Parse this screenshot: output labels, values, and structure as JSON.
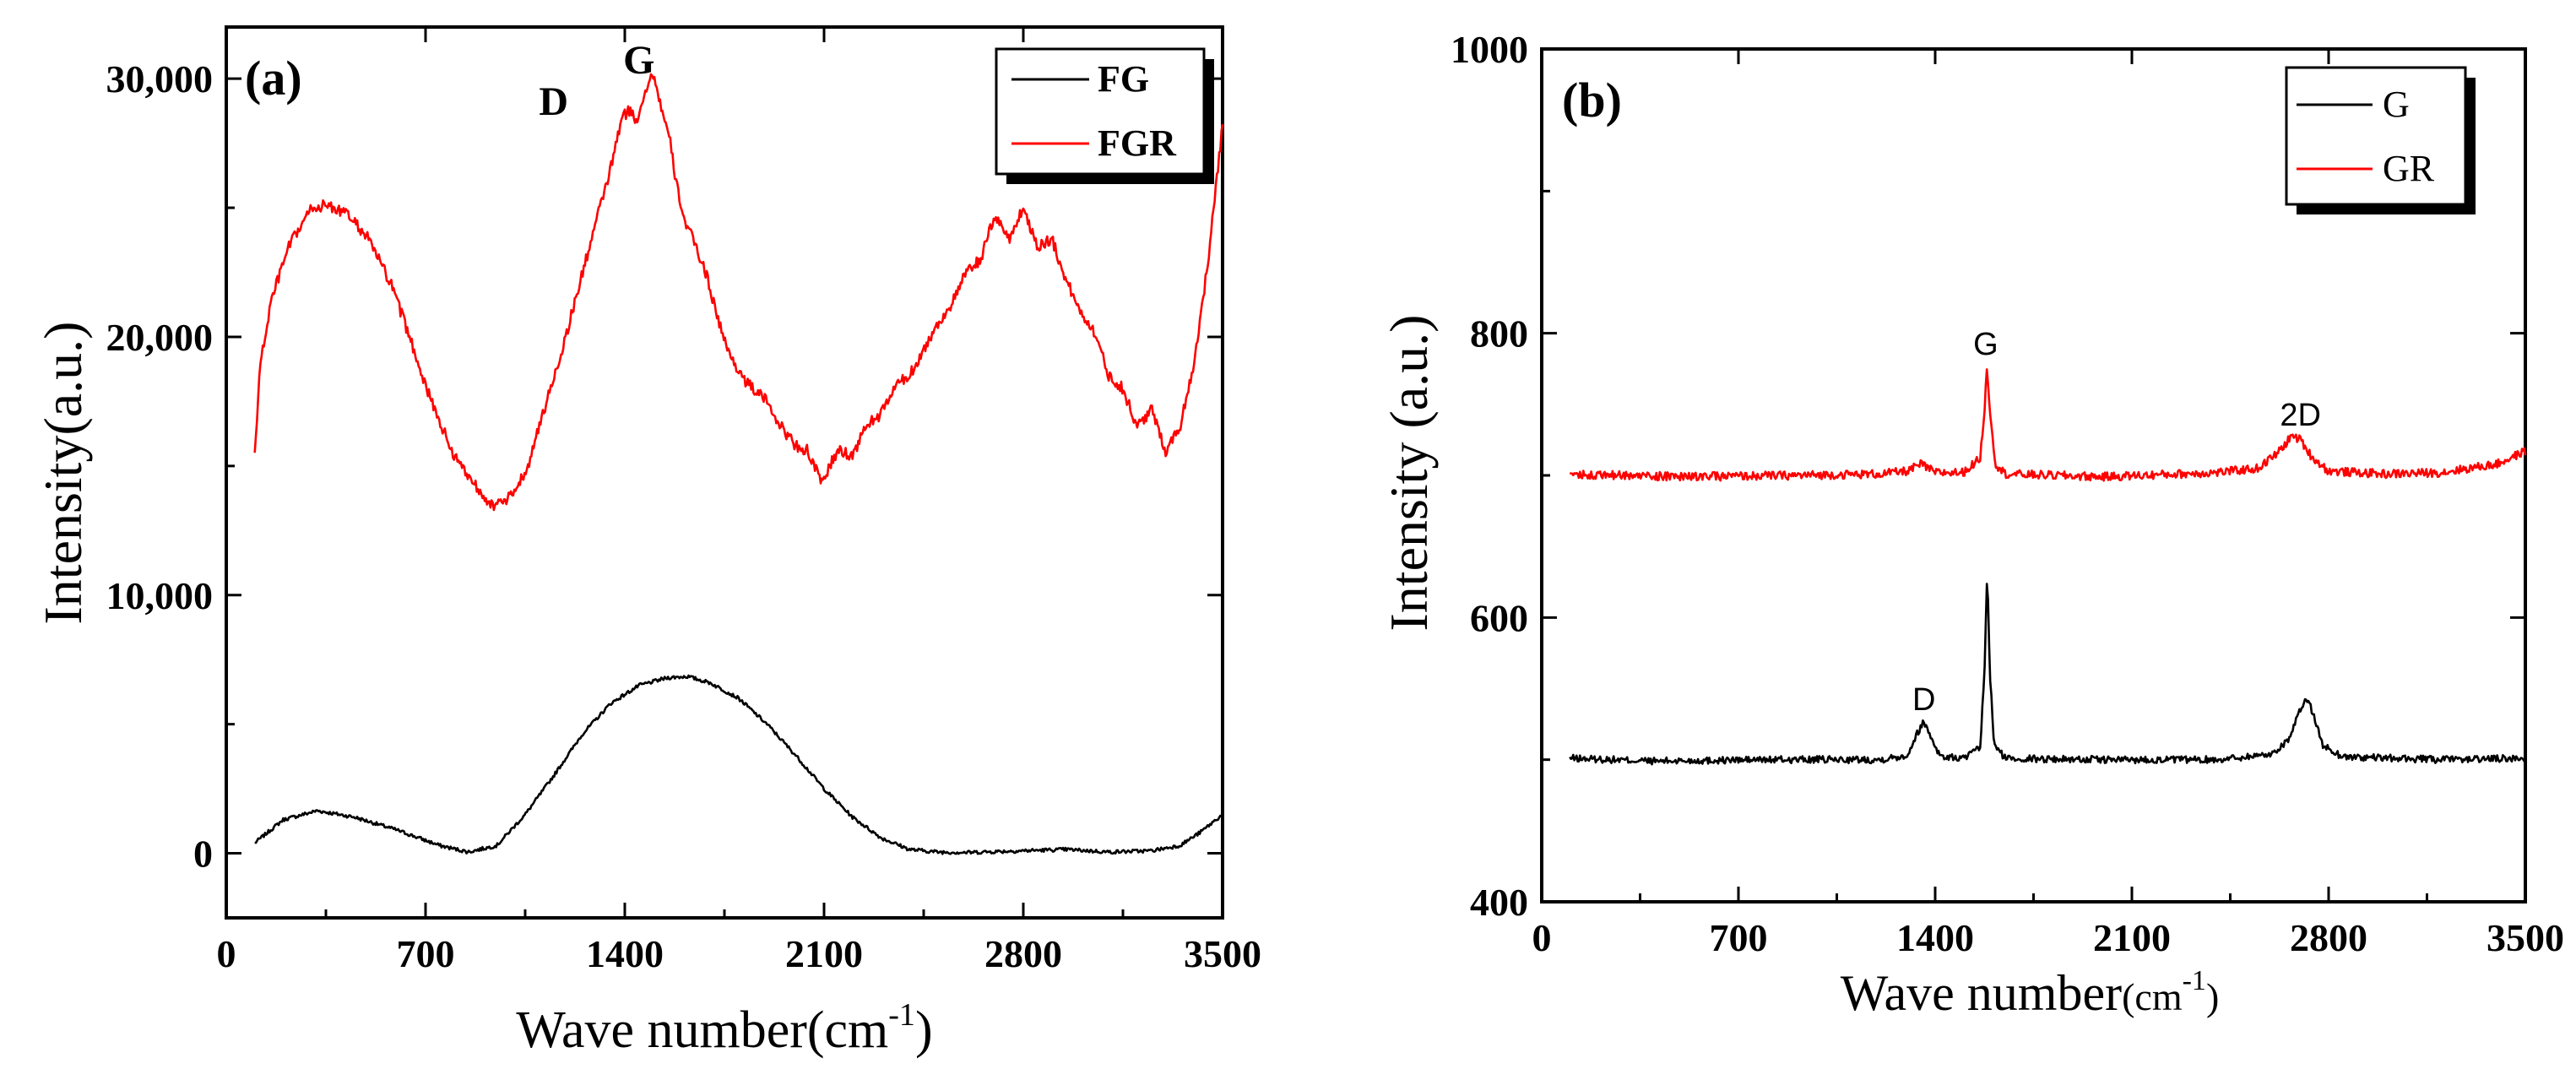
{
  "chart_data": [
    {
      "type": "line",
      "panel_label": "(a)",
      "xlabel_main": "Wave number(cm",
      "xlabel_sup": "-1",
      "xlabel_close": ")",
      "ylabel": "Intensity(a.u.)",
      "xlim": [
        0,
        3500
      ],
      "ylim": [
        -2500,
        32000
      ],
      "xticks": [
        0,
        700,
        1400,
        2100,
        2800,
        3500
      ],
      "xtick_labels": [
        "0",
        "700",
        "1400",
        "2100",
        "2800",
        "3500"
      ],
      "yticks": [
        0,
        10000,
        20000,
        30000
      ],
      "ytick_labels": [
        "0",
        "10,000",
        "20,000",
        "30,000"
      ],
      "annotations": [
        {
          "text": "D",
          "x": 1150,
          "y": 28600
        },
        {
          "text": "G",
          "x": 1450,
          "y": 30200
        }
      ],
      "legend": {
        "position": "top-right",
        "entries": [
          "FG",
          "FGR"
        ]
      },
      "series": [
        {
          "name": "FG",
          "color": "#000000",
          "noise": 70,
          "points": [
            [
              100,
              400
            ],
            [
              200,
              1300
            ],
            [
              320,
              1650
            ],
            [
              450,
              1400
            ],
            [
              600,
              900
            ],
            [
              750,
              300
            ],
            [
              850,
              50
            ],
            [
              950,
              300
            ],
            [
              1050,
              1500
            ],
            [
              1150,
              3000
            ],
            [
              1250,
              4600
            ],
            [
              1350,
              5800
            ],
            [
              1450,
              6500
            ],
            [
              1550,
              6800
            ],
            [
              1620,
              6850
            ],
            [
              1700,
              6600
            ],
            [
              1800,
              6000
            ],
            [
              1900,
              5000
            ],
            [
              2000,
              3800
            ],
            [
              2100,
              2500
            ],
            [
              2200,
              1400
            ],
            [
              2300,
              600
            ],
            [
              2400,
              150
            ],
            [
              2500,
              50
            ],
            [
              2600,
              30
            ],
            [
              2800,
              100
            ],
            [
              2950,
              150
            ],
            [
              3100,
              50
            ],
            [
              3250,
              100
            ],
            [
              3350,
              300
            ],
            [
              3420,
              800
            ],
            [
              3500,
              1500
            ]
          ]
        },
        {
          "name": "FGR",
          "color": "#ff0000",
          "noise": 220,
          "points": [
            [
              100,
              15500
            ],
            [
              120,
              19000
            ],
            [
              160,
              21500
            ],
            [
              220,
              23500
            ],
            [
              300,
              25000
            ],
            [
              360,
              25100
            ],
            [
              430,
              24700
            ],
            [
              500,
              23800
            ],
            [
              580,
              22000
            ],
            [
              650,
              19800
            ],
            [
              720,
              17500
            ],
            [
              800,
              15400
            ],
            [
              880,
              14200
            ],
            [
              940,
              13400
            ],
            [
              1000,
              13800
            ],
            [
              1060,
              15000
            ],
            [
              1120,
              17300
            ],
            [
              1180,
              19500
            ],
            [
              1240,
              22000
            ],
            [
              1300,
              24500
            ],
            [
              1350,
              26500
            ],
            [
              1390,
              28500
            ],
            [
              1420,
              28800
            ],
            [
              1440,
              28300
            ],
            [
              1470,
              29500
            ],
            [
              1500,
              30200
            ],
            [
              1530,
              28800
            ],
            [
              1560,
              27500
            ],
            [
              1580,
              26000
            ],
            [
              1610,
              24500
            ],
            [
              1650,
              23500
            ],
            [
              1690,
              22300
            ],
            [
              1720,
              21000
            ],
            [
              1760,
              19500
            ],
            [
              1800,
              18700
            ],
            [
              1830,
              18200
            ],
            [
              1870,
              17800
            ],
            [
              1900,
              17500
            ],
            [
              1950,
              16500
            ],
            [
              2000,
              15800
            ],
            [
              2040,
              15600
            ],
            [
              2070,
              14900
            ],
            [
              2090,
              14300
            ],
            [
              2120,
              15000
            ],
            [
              2150,
              15600
            ],
            [
              2200,
              15400
            ],
            [
              2250,
              16600
            ],
            [
              2300,
              17000
            ],
            [
              2350,
              18100
            ],
            [
              2400,
              18500
            ],
            [
              2450,
              19500
            ],
            [
              2500,
              20500
            ],
            [
              2550,
              21300
            ],
            [
              2600,
              22500
            ],
            [
              2650,
              23000
            ],
            [
              2700,
              24700
            ],
            [
              2750,
              23800
            ],
            [
              2800,
              25000
            ],
            [
              2850,
              23500
            ],
            [
              2900,
              23800
            ],
            [
              2950,
              22200
            ],
            [
              3000,
              21000
            ],
            [
              3050,
              20200
            ],
            [
              3100,
              18500
            ],
            [
              3150,
              18000
            ],
            [
              3200,
              16500
            ],
            [
              3250,
              17200
            ],
            [
              3300,
              15600
            ],
            [
              3350,
              16500
            ],
            [
              3400,
              19000
            ],
            [
              3450,
              23000
            ],
            [
              3500,
              28200
            ]
          ]
        }
      ]
    },
    {
      "type": "line",
      "panel_label": "(b)",
      "xlabel_main": "Wave number",
      "xlabel_small": "(cm",
      "xlabel_sup": "-1",
      "xlabel_close": ")",
      "ylabel": "Intensity (a.u.)",
      "xlim": [
        0,
        3500
      ],
      "ylim": [
        400,
        1000
      ],
      "xticks": [
        0,
        700,
        1400,
        2100,
        2800,
        3500
      ],
      "xtick_labels": [
        "0",
        "700",
        "1400",
        "2100",
        "2800",
        "3500"
      ],
      "yticks": [
        400,
        600,
        800,
        1000
      ],
      "ytick_labels": [
        "400",
        "600",
        "800",
        "1000"
      ],
      "annotations": [
        {
          "text": "G",
          "x": 1580,
          "y": 785
        },
        {
          "text": "2D",
          "x": 2700,
          "y": 735
        },
        {
          "text": "D",
          "x": 1360,
          "y": 535
        }
      ],
      "legend": {
        "position": "top-right",
        "entries": [
          "G",
          "GR"
        ]
      },
      "series": [
        {
          "name": "G",
          "color": "#000000",
          "noise": 2.5,
          "points": [
            [
              100,
              501
            ],
            [
              400,
              499
            ],
            [
              800,
              500
            ],
            [
              1200,
              500
            ],
            [
              1300,
              503
            ],
            [
              1340,
              520
            ],
            [
              1360,
              527
            ],
            [
              1380,
              518
            ],
            [
              1420,
              502
            ],
            [
              1500,
              501
            ],
            [
              1560,
              508
            ],
            [
              1575,
              560
            ],
            [
              1585,
              632
            ],
            [
              1595,
              560
            ],
            [
              1610,
              510
            ],
            [
              1650,
              501
            ],
            [
              2000,
              500
            ],
            [
              2400,
              500
            ],
            [
              2600,
              504
            ],
            [
              2660,
              515
            ],
            [
              2700,
              535
            ],
            [
              2720,
              544
            ],
            [
              2740,
              535
            ],
            [
              2780,
              510
            ],
            [
              2850,
              502
            ],
            [
              3200,
              500
            ],
            [
              3500,
              501
            ]
          ]
        },
        {
          "name": "GR",
          "color": "#ff0000",
          "noise": 3,
          "points": [
            [
              100,
              701
            ],
            [
              500,
              699
            ],
            [
              900,
              700
            ],
            [
              1200,
              701
            ],
            [
              1300,
              703
            ],
            [
              1350,
              708
            ],
            [
              1400,
              702
            ],
            [
              1500,
              702
            ],
            [
              1560,
              712
            ],
            [
              1575,
              745
            ],
            [
              1585,
              777
            ],
            [
              1595,
              745
            ],
            [
              1615,
              708
            ],
            [
              1650,
              701
            ],
            [
              2000,
              699
            ],
            [
              2400,
              702
            ],
            [
              2550,
              705
            ],
            [
              2620,
              716
            ],
            [
              2670,
              728
            ],
            [
              2700,
              725
            ],
            [
              2740,
              713
            ],
            [
              2800,
              703
            ],
            [
              3000,
              701
            ],
            [
              3200,
              702
            ],
            [
              3400,
              708
            ],
            [
              3500,
              717
            ]
          ]
        }
      ]
    }
  ]
}
